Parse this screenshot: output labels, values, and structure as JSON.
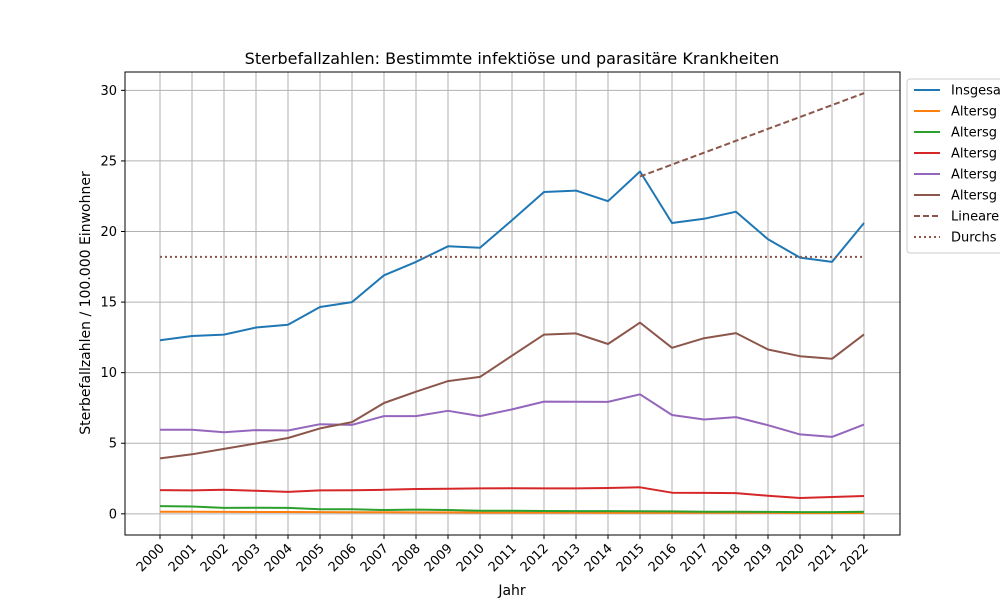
{
  "chart_data": {
    "type": "line",
    "title": "Sterbefallzahlen: Bestimmte infektiöse und parasitäre Krankheiten",
    "xlabel": "Jahr",
    "ylabel": "Sterbefallzahlen / 100.000 Einwohner",
    "ylim": [
      -1.5,
      31.3
    ],
    "yticks": [
      0,
      5,
      10,
      15,
      20,
      25,
      30
    ],
    "grid": true,
    "legend_position": "outside-right",
    "x": [
      "2000",
      "2001",
      "2002",
      "2003",
      "2004",
      "2005",
      "2006",
      "2007",
      "2008",
      "2009",
      "2010",
      "2011",
      "2012",
      "2013",
      "2014",
      "2015",
      "2016",
      "2017",
      "2018",
      "2019",
      "2020",
      "2021",
      "2022"
    ],
    "series": [
      {
        "name": "Insgesa",
        "color": "#1f77b4",
        "style": "solid",
        "values": [
          12.3,
          12.6,
          12.7,
          13.2,
          13.4,
          14.65,
          15.0,
          16.9,
          17.85,
          18.95,
          18.85,
          20.8,
          22.8,
          22.9,
          22.15,
          24.25,
          20.6,
          20.9,
          21.4,
          19.45,
          18.15,
          17.85,
          20.6
        ]
      },
      {
        "name": "Altersg",
        "color": "#ff7f0e",
        "style": "solid",
        "values": [
          0.15,
          0.15,
          0.14,
          0.13,
          0.13,
          0.12,
          0.11,
          0.11,
          0.1,
          0.1,
          0.09,
          0.09,
          0.09,
          0.09,
          0.08,
          0.08,
          0.08,
          0.07,
          0.07,
          0.07,
          0.06,
          0.06,
          0.06
        ]
      },
      {
        "name": "Altersg",
        "color": "#2ca02c",
        "style": "solid",
        "values": [
          0.55,
          0.52,
          0.42,
          0.43,
          0.42,
          0.33,
          0.32,
          0.27,
          0.3,
          0.27,
          0.22,
          0.22,
          0.2,
          0.19,
          0.19,
          0.18,
          0.17,
          0.15,
          0.15,
          0.14,
          0.12,
          0.12,
          0.15
        ]
      },
      {
        "name": "Altersg",
        "color": "#d62728",
        "style": "solid",
        "values": [
          1.68,
          1.66,
          1.7,
          1.63,
          1.55,
          1.66,
          1.67,
          1.7,
          1.76,
          1.77,
          1.8,
          1.81,
          1.8,
          1.8,
          1.83,
          1.88,
          1.5,
          1.48,
          1.47,
          1.28,
          1.12,
          1.19,
          1.26
        ]
      },
      {
        "name": "Altersg",
        "color": "#9467bd",
        "style": "solid",
        "values": [
          5.95,
          5.95,
          5.78,
          5.93,
          5.9,
          6.35,
          6.3,
          6.92,
          6.92,
          7.3,
          6.92,
          7.4,
          7.95,
          7.94,
          7.93,
          8.47,
          7.0,
          6.68,
          6.85,
          6.28,
          5.63,
          5.45,
          6.32
        ]
      },
      {
        "name": "Altersg",
        "color": "#8c564b",
        "style": "solid",
        "values": [
          3.93,
          4.22,
          4.6,
          4.98,
          5.37,
          6.05,
          6.5,
          7.85,
          8.65,
          9.4,
          9.7,
          11.2,
          12.7,
          12.78,
          12.03,
          13.55,
          11.76,
          12.44,
          12.8,
          11.64,
          11.17,
          10.98,
          12.71
        ]
      },
      {
        "name": "Lineare",
        "color": "#8c564b",
        "style": "dashed",
        "x": [
          "2015",
          "2022"
        ],
        "values": [
          23.9,
          29.8
        ]
      },
      {
        "name": "Durchs",
        "color": "#8c564b",
        "style": "dotted",
        "x": [
          "2000",
          "2022"
        ],
        "values": [
          18.2,
          18.2
        ]
      }
    ]
  }
}
